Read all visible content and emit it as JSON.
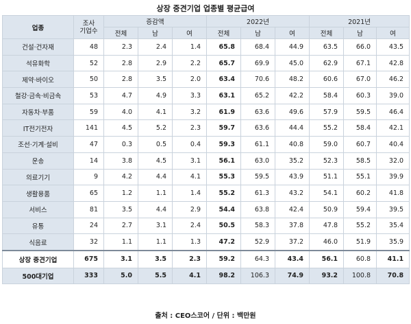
{
  "title": "상장 중견기업 업종별 평균급여",
  "headers": {
    "sector": "업종",
    "count": "조사\n기업수",
    "change": "증감액",
    "y2022": "2022년",
    "y2021": "2021년",
    "total": "전체",
    "male": "남",
    "female": "여"
  },
  "rows": [
    {
      "name": "건설·건자재",
      "count": "48",
      "chg_t": "2.3",
      "chg_m": "2.4",
      "chg_f": "1.4",
      "y22_t": "65.8",
      "y22_m": "68.4",
      "y22_f": "44.9",
      "y21_t": "63.5",
      "y21_m": "66.0",
      "y21_f": "43.5"
    },
    {
      "name": "석유화학",
      "count": "52",
      "chg_t": "2.8",
      "chg_m": "2.9",
      "chg_f": "2.2",
      "y22_t": "65.7",
      "y22_m": "69.9",
      "y22_f": "45.0",
      "y21_t": "62.9",
      "y21_m": "67.1",
      "y21_f": "42.8"
    },
    {
      "name": "제약·바이오",
      "count": "50",
      "chg_t": "2.8",
      "chg_m": "3.5",
      "chg_f": "2.0",
      "y22_t": "63.4",
      "y22_m": "70.6",
      "y22_f": "48.2",
      "y21_t": "60.6",
      "y21_m": "67.0",
      "y21_f": "46.2"
    },
    {
      "name": "철강·금속·비금속",
      "count": "53",
      "chg_t": "4.7",
      "chg_m": "4.9",
      "chg_f": "3.3",
      "y22_t": "63.1",
      "y22_m": "65.2",
      "y22_f": "42.2",
      "y21_t": "58.4",
      "y21_m": "60.3",
      "y21_f": "39.0"
    },
    {
      "name": "자동차·부품",
      "count": "59",
      "chg_t": "4.0",
      "chg_m": "4.1",
      "chg_f": "3.2",
      "y22_t": "61.9",
      "y22_m": "63.6",
      "y22_f": "49.6",
      "y21_t": "57.9",
      "y21_m": "59.5",
      "y21_f": "46.4"
    },
    {
      "name": "IT전기전자",
      "count": "141",
      "chg_t": "4.5",
      "chg_m": "5.2",
      "chg_f": "2.3",
      "y22_t": "59.7",
      "y22_m": "63.6",
      "y22_f": "44.4",
      "y21_t": "55.2",
      "y21_m": "58.4",
      "y21_f": "42.1"
    },
    {
      "name": "조선·기계·설비",
      "count": "47",
      "chg_t": "0.3",
      "chg_m": "0.5",
      "chg_f": "0.4",
      "y22_t": "59.3",
      "y22_m": "61.1",
      "y22_f": "40.8",
      "y21_t": "59.0",
      "y21_m": "60.7",
      "y21_f": "40.4"
    },
    {
      "name": "운송",
      "count": "14",
      "chg_t": "3.8",
      "chg_m": "4.5",
      "chg_f": "3.1",
      "y22_t": "56.1",
      "y22_m": "63.0",
      "y22_f": "35.2",
      "y21_t": "52.3",
      "y21_m": "58.5",
      "y21_f": "32.0"
    },
    {
      "name": "의료기기",
      "count": "9",
      "chg_t": "4.2",
      "chg_m": "4.4",
      "chg_f": "4.1",
      "y22_t": "55.3",
      "y22_m": "59.5",
      "y22_f": "43.9",
      "y21_t": "51.1",
      "y21_m": "55.1",
      "y21_f": "39.9"
    },
    {
      "name": "생활용품",
      "count": "65",
      "chg_t": "1.2",
      "chg_m": "1.1",
      "chg_f": "1.4",
      "y22_t": "55.2",
      "y22_m": "61.3",
      "y22_f": "43.2",
      "y21_t": "54.1",
      "y21_m": "60.2",
      "y21_f": "41.8"
    },
    {
      "name": "서비스",
      "count": "81",
      "chg_t": "3.5",
      "chg_m": "4.4",
      "chg_f": "2.9",
      "y22_t": "54.4",
      "y22_m": "63.8",
      "y22_f": "42.4",
      "y21_t": "50.9",
      "y21_m": "59.4",
      "y21_f": "39.5"
    },
    {
      "name": "유통",
      "count": "24",
      "chg_t": "2.7",
      "chg_m": "3.1",
      "chg_f": "2.4",
      "y22_t": "50.5",
      "y22_m": "58.3",
      "y22_f": "37.8",
      "y21_t": "47.8",
      "y21_m": "55.2",
      "y21_f": "35.4"
    },
    {
      "name": "식음료",
      "count": "32",
      "chg_t": "1.1",
      "chg_m": "1.1",
      "chg_f": "1.3",
      "y22_t": "47.2",
      "y22_m": "52.9",
      "y22_f": "37.2",
      "y21_t": "46.0",
      "y21_m": "51.9",
      "y21_f": "35.9"
    }
  ],
  "summary": [
    {
      "name": "상장 중견기업",
      "count": "675",
      "chg_t": "3.1",
      "chg_m": "3.5",
      "chg_f": "2.3",
      "y22_t": "59.2",
      "y22_m": "64.3",
      "y22_f": "43.4",
      "y21_t": "56.1",
      "y21_m": "60.8",
      "y21_f": "41.1"
    },
    {
      "name": "500대기업",
      "count": "333",
      "chg_t": "5.0",
      "chg_m": "5.5",
      "chg_f": "4.1",
      "y22_t": "98.2",
      "y22_m": "106.3",
      "y22_f": "74.9",
      "y21_t": "93.2",
      "y21_m": "100.8",
      "y21_f": "70.8"
    }
  ],
  "source": "출처 : CEO스코어 / 단위 : 백만원"
}
